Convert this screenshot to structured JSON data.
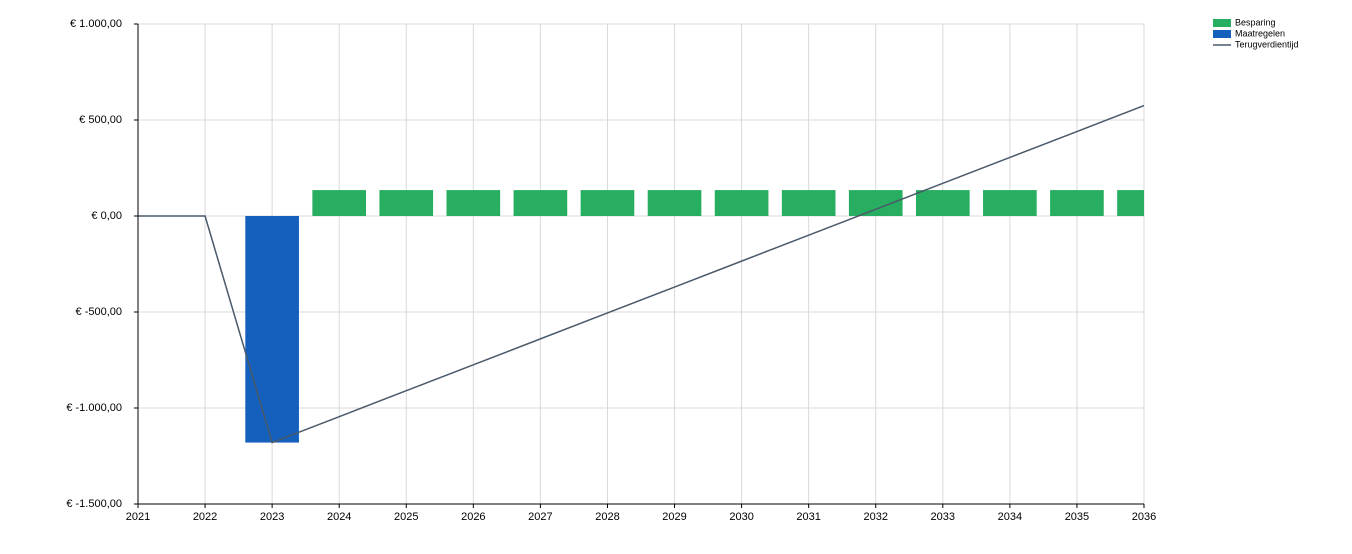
{
  "chart_data": {
    "type": "combo",
    "x": [
      2021,
      2022,
      2023,
      2024,
      2025,
      2026,
      2027,
      2028,
      2029,
      2030,
      2031,
      2032,
      2033,
      2034,
      2035,
      2036
    ],
    "series": [
      {
        "name": "Besparing",
        "type": "bar",
        "color": "#27ae60",
        "values": [
          null,
          null,
          null,
          135,
          135,
          135,
          135,
          135,
          135,
          135,
          135,
          135,
          135,
          135,
          135,
          135
        ]
      },
      {
        "name": "Maatregelen",
        "type": "bar",
        "color": "#1560bd",
        "values": [
          null,
          null,
          -1180,
          null,
          null,
          null,
          null,
          null,
          null,
          null,
          null,
          null,
          null,
          null,
          null,
          null
        ]
      },
      {
        "name": "Terugverdientijd",
        "type": "line",
        "color": "#4a5a6a",
        "values": [
          0,
          0,
          -1180,
          -1045,
          -910,
          -775,
          -640,
          -505,
          -370,
          -235,
          -100,
          35,
          170,
          305,
          440,
          575
        ]
      }
    ],
    "xlim": [
      2021,
      2036
    ],
    "xticks": [
      2021,
      2022,
      2023,
      2024,
      2025,
      2026,
      2027,
      2028,
      2029,
      2030,
      2031,
      2032,
      2033,
      2034,
      2035,
      2036
    ],
    "ylim": [
      -1500,
      1000
    ],
    "yticks": [
      {
        "value": -1500,
        "label": "€ -1.500,00"
      },
      {
        "value": -1000,
        "label": "€ -1.000,00"
      },
      {
        "value": -500,
        "label": "€ -500,00"
      },
      {
        "value": 0,
        "label": "€ 0,00"
      },
      {
        "value": 500,
        "label": "€ 500,00"
      },
      {
        "value": 1000,
        "label": "€ 1.000,00"
      }
    ],
    "grid": true,
    "legend": "top-right"
  }
}
